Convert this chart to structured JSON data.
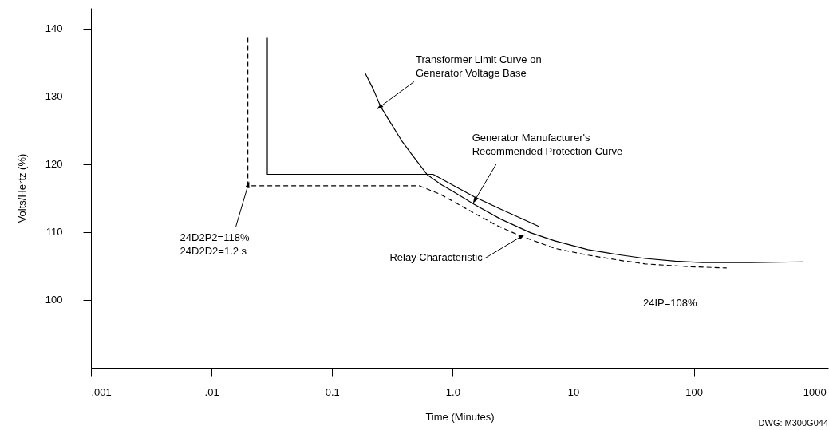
{
  "chart_data": {
    "type": "line",
    "xlabel": "Time (Minutes)",
    "ylabel": "Volts/Hertz (%)",
    "log": "x",
    "grid": false,
    "xlim": [
      0.001,
      1300
    ],
    "ylim": [
      90,
      143
    ],
    "xticks": [
      {
        "value": 0.001,
        "label": ".001"
      },
      {
        "value": 0.01,
        "label": ".01"
      },
      {
        "value": 0.1,
        "label": "0.1"
      },
      {
        "value": 1,
        "label": "1.0"
      },
      10,
      100,
      1000
    ],
    "yticks": [
      100,
      110,
      120,
      130,
      140
    ],
    "series": [
      {
        "color": "#000000",
        "line_style": "solid",
        "x": [
          0.188,
          0.22,
          0.252,
          0.3,
          0.379,
          0.45,
          0.618,
          0.8,
          1.0,
          1.5,
          2.5,
          4.41,
          7,
          13.2,
          25,
          39.5,
          70,
          117,
          300,
          810
        ],
        "values": [
          133.4,
          131,
          128.5,
          126.3,
          123.4,
          121.6,
          118.4,
          117,
          116,
          114.1,
          111.9,
          109.9,
          108.7,
          107.4,
          106.6,
          106.1,
          105.7,
          105.5,
          105.5,
          105.6
        ]
      },
      {
        "color": "#000000",
        "line_style": "solid",
        "x": [
          0.029,
          0.029,
          0.687,
          1.0,
          1.5,
          2.55,
          3.7,
          5.21
        ],
        "values": [
          138.6,
          118.5,
          118.5,
          116.9,
          115.2,
          113.3,
          112,
          110.8
        ]
      },
      {
        "color": "#000000",
        "line_style": "dashed",
        "x": [
          0.02,
          0.02,
          0.53,
          0.8,
          1.5,
          2.3,
          3.56,
          7,
          13.2,
          25,
          39.5,
          90,
          187
        ],
        "values": [
          138.6,
          116.8,
          116.8,
          115.5,
          112.8,
          111,
          109.5,
          107.6,
          106.6,
          105.8,
          105.3,
          104.9,
          104.7
        ]
      }
    ],
    "annotations": [
      {
        "text": "Transformer Limit Curve on\nGenerator Voltage Base",
        "x": 0.252,
        "y": 128.5
      },
      {
        "text": "Generator Manufacturer's\nRecommended Protection Curve",
        "x": 1.54,
        "y": 114.8
      },
      {
        "text": "Relay Characteristic",
        "x": 3.67,
        "y": 109.3
      },
      {
        "text": "24D2P2=118%\n24D2D2=1.2 s",
        "x": 0.02,
        "y": 116.8
      },
      "24IP=108%",
      "DWG:  M300G044"
    ]
  }
}
